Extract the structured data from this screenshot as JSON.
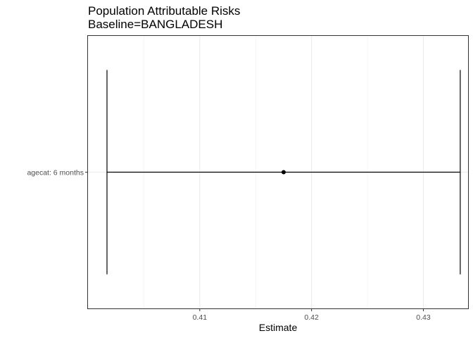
{
  "chart_data": {
    "type": "errorbar",
    "title": "Population Attributable Risks",
    "subtitle": "Baseline=BANGLADESH",
    "xlabel": "Estimate",
    "ylabel": "",
    "xlim": [
      0.4,
      0.434
    ],
    "x_ticks": [
      0.41,
      0.42,
      0.43
    ],
    "x_tick_labels": [
      "0.41",
      "0.42",
      "0.43"
    ],
    "grid": true,
    "categories": [
      "agecat: 6 months"
    ],
    "points": [
      {
        "category": "agecat: 6 months",
        "estimate": 0.4175,
        "lower": 0.4017,
        "upper": 0.4333
      }
    ]
  }
}
